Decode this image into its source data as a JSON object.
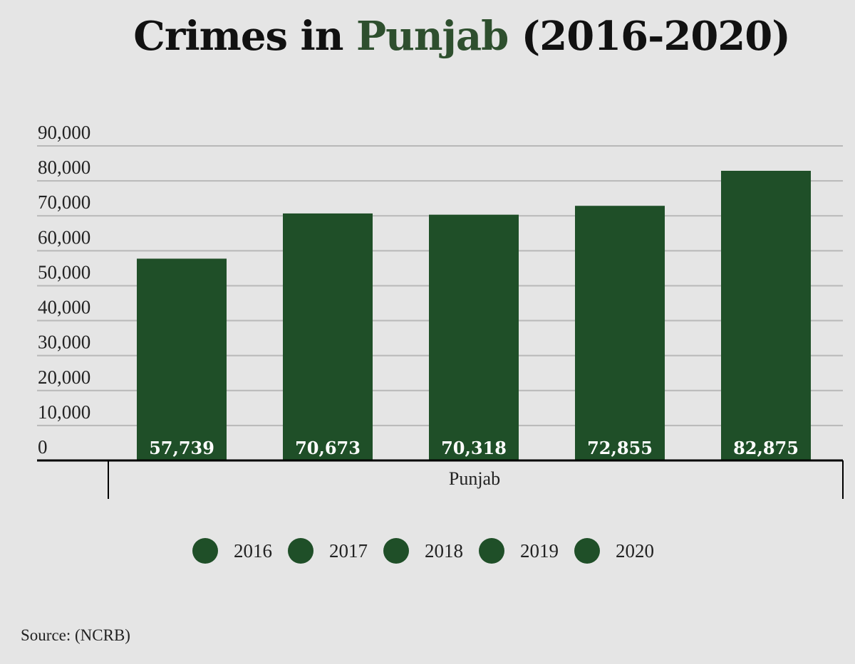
{
  "title": {
    "prefix": "Crimes in ",
    "highlight": "Punjab",
    "suffix": " (2016-2020)"
  },
  "colors": {
    "bar": "#1f4f28",
    "highlight": "#2e4f2e",
    "grid": "#b8b8b8",
    "axis": "#000000",
    "background": "#e5e5e5"
  },
  "source": "Source: (NCRB)",
  "chart_data": {
    "type": "bar",
    "categories": [
      "Punjab"
    ],
    "series": [
      {
        "name": "2016",
        "values": [
          57739
        ],
        "label": "57,739"
      },
      {
        "name": "2017",
        "values": [
          70673
        ],
        "label": "70,673"
      },
      {
        "name": "2018",
        "values": [
          70318
        ],
        "label": "70,318"
      },
      {
        "name": "2019",
        "values": [
          72855
        ],
        "label": "72,855"
      },
      {
        "name": "2020",
        "values": [
          82875
        ],
        "label": "82,875"
      }
    ],
    "yticks": [
      "0",
      "10,000",
      "20,000",
      "30,000",
      "40,000",
      "50,000",
      "60,000",
      "70,000",
      "80,000",
      "90,000"
    ],
    "ylim": [
      0,
      90000
    ],
    "grid": true,
    "legend_position": "bottom"
  }
}
